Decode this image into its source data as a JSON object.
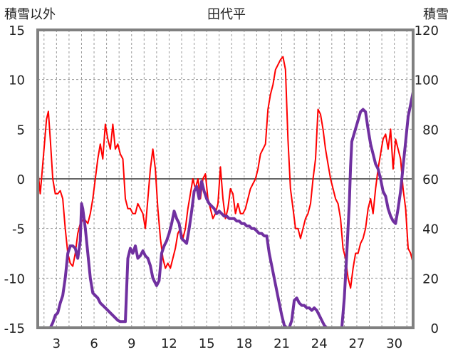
{
  "chart_data": {
    "type": "line",
    "title": "田代平",
    "left_axis_label": "積雪以外",
    "right_axis_label": "積雪",
    "left_ylim": [
      -15,
      15
    ],
    "left_ticks": [
      "15",
      "10",
      "5",
      "0",
      "-5",
      "-10",
      "-15"
    ],
    "right_ylim": [
      0,
      120
    ],
    "right_ticks": [
      "120",
      "100",
      "80",
      "60",
      "40",
      "20",
      "0"
    ],
    "xlim": [
      1.5,
      31.5
    ],
    "x_ticks": [
      "3",
      "6",
      "9",
      "12",
      "15",
      "18",
      "21",
      "24",
      "27",
      "30"
    ],
    "grid": true,
    "colors": {
      "temperature": "#ff0000",
      "snow_depth": "#7030a0",
      "frame": "#808080",
      "grid": "#9a9a9a",
      "zero": "#666666"
    },
    "series": [
      {
        "axis": "left",
        "color": "#ff0000",
        "points": [
          [
            1.5,
            1
          ],
          [
            1.7,
            -1.5
          ],
          [
            1.8,
            0
          ],
          [
            2.0,
            3
          ],
          [
            2.2,
            6
          ],
          [
            2.35,
            6.8
          ],
          [
            2.5,
            4
          ],
          [
            2.7,
            0
          ],
          [
            2.9,
            -1.5
          ],
          [
            3.1,
            -1.5
          ],
          [
            3.3,
            -1.2
          ],
          [
            3.5,
            -2
          ],
          [
            3.7,
            -5
          ],
          [
            3.9,
            -7.5
          ],
          [
            4.1,
            -8.5
          ],
          [
            4.3,
            -8.8
          ],
          [
            4.5,
            -7.5
          ],
          [
            4.7,
            -5.5
          ],
          [
            4.9,
            -4.5
          ],
          [
            5.2,
            -4
          ],
          [
            5.5,
            -4.5
          ],
          [
            5.7,
            -3.5
          ],
          [
            5.9,
            -2
          ],
          [
            6.1,
            0
          ],
          [
            6.3,
            2
          ],
          [
            6.5,
            3.5
          ],
          [
            6.7,
            2
          ],
          [
            6.9,
            5.5
          ],
          [
            7.1,
            4
          ],
          [
            7.3,
            3
          ],
          [
            7.5,
            5.5
          ],
          [
            7.7,
            3
          ],
          [
            7.9,
            3.5
          ],
          [
            8.1,
            2.5
          ],
          [
            8.3,
            2
          ],
          [
            8.5,
            -2
          ],
          [
            8.7,
            -3
          ],
          [
            8.9,
            -3
          ],
          [
            9.1,
            -3.5
          ],
          [
            9.3,
            -3.5
          ],
          [
            9.5,
            -2.5
          ],
          [
            9.7,
            -3
          ],
          [
            9.9,
            -3.5
          ],
          [
            10.1,
            -5
          ],
          [
            10.3,
            -2
          ],
          [
            10.5,
            1
          ],
          [
            10.7,
            3
          ],
          [
            10.9,
            1
          ],
          [
            11.1,
            -3
          ],
          [
            11.3,
            -6
          ],
          [
            11.5,
            -8
          ],
          [
            11.7,
            -9
          ],
          [
            11.9,
            -8.5
          ],
          [
            12.1,
            -9
          ],
          [
            12.3,
            -8
          ],
          [
            12.5,
            -7
          ],
          [
            12.7,
            -5.5
          ],
          [
            12.9,
            -5
          ],
          [
            13.1,
            -6
          ],
          [
            13.3,
            -5
          ],
          [
            13.5,
            -3
          ],
          [
            13.7,
            -1.5
          ],
          [
            13.9,
            0
          ],
          [
            14.1,
            -1
          ],
          [
            14.3,
            0
          ],
          [
            14.5,
            -2
          ],
          [
            14.7,
            0
          ],
          [
            14.9,
            0.5
          ],
          [
            15.1,
            -2
          ],
          [
            15.3,
            -3
          ],
          [
            15.5,
            -4
          ],
          [
            15.7,
            -3.5
          ],
          [
            15.9,
            -2.5
          ],
          [
            16.1,
            1.2
          ],
          [
            16.3,
            -2
          ],
          [
            16.5,
            -4
          ],
          [
            16.7,
            -3
          ],
          [
            16.9,
            -1
          ],
          [
            17.1,
            -1.5
          ],
          [
            17.3,
            -3.5
          ],
          [
            17.5,
            -2.5
          ],
          [
            17.7,
            -3.5
          ],
          [
            17.9,
            -3.5
          ],
          [
            18.1,
            -3
          ],
          [
            18.3,
            -2
          ],
          [
            18.5,
            -1
          ],
          [
            18.7,
            -0.5
          ],
          [
            18.9,
            0
          ],
          [
            19.1,
            1
          ],
          [
            19.3,
            2.5
          ],
          [
            19.5,
            3
          ],
          [
            19.7,
            3.5
          ],
          [
            19.9,
            7
          ],
          [
            20.1,
            8.5
          ],
          [
            20.3,
            9.5
          ],
          [
            20.5,
            11
          ],
          [
            20.7,
            11.5
          ],
          [
            20.9,
            12
          ],
          [
            21.1,
            12.3
          ],
          [
            21.3,
            11
          ],
          [
            21.5,
            4
          ],
          [
            21.7,
            -1
          ],
          [
            21.9,
            -3
          ],
          [
            22.1,
            -5
          ],
          [
            22.3,
            -5
          ],
          [
            22.5,
            -6
          ],
          [
            22.7,
            -5
          ],
          [
            22.9,
            -4
          ],
          [
            23.1,
            -3.5
          ],
          [
            23.3,
            -2.5
          ],
          [
            23.5,
            0
          ],
          [
            23.7,
            2
          ],
          [
            23.9,
            7
          ],
          [
            24.1,
            6.5
          ],
          [
            24.3,
            5
          ],
          [
            24.5,
            3
          ],
          [
            24.7,
            1.5
          ],
          [
            24.9,
            0
          ],
          [
            25.1,
            -1
          ],
          [
            25.3,
            -2
          ],
          [
            25.5,
            -2.5
          ],
          [
            25.7,
            -4
          ],
          [
            25.9,
            -7
          ],
          [
            26.1,
            -8
          ],
          [
            26.3,
            -10
          ],
          [
            26.5,
            -11
          ],
          [
            26.7,
            -9
          ],
          [
            26.9,
            -7.5
          ],
          [
            27.1,
            -7.5
          ],
          [
            27.3,
            -6.5
          ],
          [
            27.5,
            -6
          ],
          [
            27.7,
            -5
          ],
          [
            27.9,
            -3
          ],
          [
            28.1,
            -2
          ],
          [
            28.3,
            -3.5
          ],
          [
            28.5,
            -1
          ],
          [
            28.7,
            1
          ],
          [
            28.9,
            2.5
          ],
          [
            29.1,
            4
          ],
          [
            29.3,
            4.5
          ],
          [
            29.5,
            3
          ],
          [
            29.7,
            5
          ],
          [
            29.9,
            1
          ],
          [
            30.1,
            4
          ],
          [
            30.3,
            3
          ],
          [
            30.5,
            2
          ],
          [
            30.7,
            -1
          ],
          [
            30.9,
            -3
          ],
          [
            31.1,
            -7
          ],
          [
            31.3,
            -7.5
          ],
          [
            31.5,
            -8.5
          ]
        ]
      },
      {
        "axis": "right",
        "color": "#7030a0",
        "points": [
          [
            1.5,
            0
          ],
          [
            1.7,
            0
          ],
          [
            1.9,
            0
          ],
          [
            2.1,
            0
          ],
          [
            2.3,
            0
          ],
          [
            2.5,
            0
          ],
          [
            2.7,
            2
          ],
          [
            2.9,
            5
          ],
          [
            3.1,
            6
          ],
          [
            3.3,
            10
          ],
          [
            3.5,
            13
          ],
          [
            3.7,
            20
          ],
          [
            3.9,
            30
          ],
          [
            4.1,
            33
          ],
          [
            4.3,
            33
          ],
          [
            4.5,
            32
          ],
          [
            4.7,
            28
          ],
          [
            4.9,
            35
          ],
          [
            5.0,
            50
          ],
          [
            5.1,
            48
          ],
          [
            5.3,
            40
          ],
          [
            5.5,
            30
          ],
          [
            5.7,
            20
          ],
          [
            5.9,
            14
          ],
          [
            6.1,
            13
          ],
          [
            6.3,
            12
          ],
          [
            6.5,
            10
          ],
          [
            6.7,
            9
          ],
          [
            6.9,
            8
          ],
          [
            7.1,
            7
          ],
          [
            7.3,
            6
          ],
          [
            7.5,
            5
          ],
          [
            7.7,
            4
          ],
          [
            7.9,
            3
          ],
          [
            8.1,
            2.5
          ],
          [
            8.3,
            2.5
          ],
          [
            8.5,
            2.5
          ],
          [
            8.7,
            28
          ],
          [
            8.9,
            32
          ],
          [
            9.1,
            30
          ],
          [
            9.3,
            33
          ],
          [
            9.5,
            28
          ],
          [
            9.7,
            29
          ],
          [
            9.9,
            31
          ],
          [
            10.1,
            29
          ],
          [
            10.3,
            28
          ],
          [
            10.5,
            25
          ],
          [
            10.7,
            20
          ],
          [
            10.9,
            18
          ],
          [
            11.0,
            17
          ],
          [
            11.2,
            19
          ],
          [
            11.4,
            30
          ],
          [
            11.6,
            33
          ],
          [
            11.8,
            35
          ],
          [
            12.0,
            38
          ],
          [
            12.2,
            42
          ],
          [
            12.4,
            47
          ],
          [
            12.6,
            44
          ],
          [
            12.8,
            42
          ],
          [
            13.0,
            36
          ],
          [
            13.2,
            35
          ],
          [
            13.4,
            34
          ],
          [
            13.6,
            40
          ],
          [
            13.8,
            47
          ],
          [
            14.0,
            55
          ],
          [
            14.2,
            57
          ],
          [
            14.4,
            52
          ],
          [
            14.6,
            59
          ],
          [
            14.8,
            55
          ],
          [
            15.0,
            52
          ],
          [
            15.2,
            50
          ],
          [
            15.4,
            49
          ],
          [
            15.6,
            48
          ],
          [
            15.8,
            46
          ],
          [
            16.0,
            47
          ],
          [
            16.2,
            46
          ],
          [
            16.4,
            45
          ],
          [
            16.6,
            45
          ],
          [
            16.8,
            44
          ],
          [
            17.0,
            44
          ],
          [
            17.2,
            44
          ],
          [
            17.4,
            43
          ],
          [
            17.6,
            43
          ],
          [
            17.8,
            42
          ],
          [
            18.0,
            42
          ],
          [
            18.2,
            41
          ],
          [
            18.4,
            41
          ],
          [
            18.6,
            40
          ],
          [
            18.8,
            40
          ],
          [
            19.0,
            39
          ],
          [
            19.2,
            38
          ],
          [
            19.4,
            38
          ],
          [
            19.6,
            37
          ],
          [
            19.8,
            37
          ],
          [
            20.0,
            30
          ],
          [
            20.2,
            25
          ],
          [
            20.4,
            20
          ],
          [
            20.6,
            15
          ],
          [
            20.8,
            10
          ],
          [
            21.0,
            5
          ],
          [
            21.2,
            1
          ],
          [
            21.4,
            0
          ],
          [
            21.6,
            0
          ],
          [
            21.8,
            3
          ],
          [
            22.0,
            11
          ],
          [
            22.2,
            12
          ],
          [
            22.4,
            10
          ],
          [
            22.6,
            9
          ],
          [
            22.8,
            9
          ],
          [
            23.0,
            8
          ],
          [
            23.2,
            8
          ],
          [
            23.4,
            7
          ],
          [
            23.6,
            8
          ],
          [
            23.8,
            7
          ],
          [
            24.0,
            5
          ],
          [
            24.2,
            3
          ],
          [
            24.4,
            1
          ],
          [
            24.6,
            0
          ],
          [
            24.8,
            0
          ],
          [
            25.0,
            0
          ],
          [
            25.2,
            0
          ],
          [
            25.4,
            0
          ],
          [
            25.6,
            0
          ],
          [
            25.8,
            0
          ],
          [
            26.0,
            12
          ],
          [
            26.2,
            30
          ],
          [
            26.4,
            50
          ],
          [
            26.5,
            65
          ],
          [
            26.6,
            75
          ],
          [
            27.3,
            87
          ],
          [
            27.5,
            88
          ],
          [
            27.7,
            87
          ],
          [
            27.9,
            80
          ],
          [
            28.1,
            74
          ],
          [
            28.3,
            70
          ],
          [
            28.5,
            66
          ],
          [
            28.7,
            64
          ],
          [
            28.9,
            60
          ],
          [
            29.1,
            55
          ],
          [
            29.3,
            53
          ],
          [
            29.5,
            48
          ],
          [
            29.7,
            45
          ],
          [
            29.9,
            43
          ],
          [
            30.1,
            42
          ],
          [
            30.3,
            48
          ],
          [
            30.5,
            55
          ],
          [
            30.7,
            65
          ],
          [
            30.9,
            75
          ],
          [
            31.1,
            85
          ],
          [
            31.3,
            90
          ],
          [
            31.5,
            95
          ]
        ]
      }
    ]
  }
}
